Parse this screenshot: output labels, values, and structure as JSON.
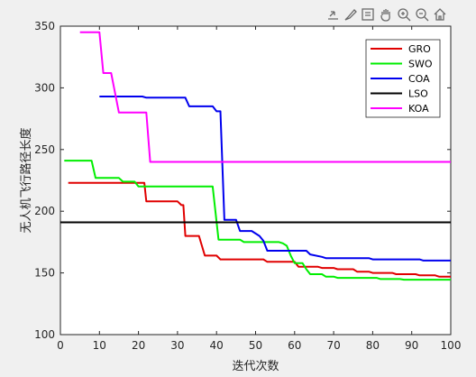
{
  "toolbar": {
    "icons": [
      "export-icon",
      "brush-icon",
      "data-tips-icon",
      "pan-icon",
      "zoom-in-icon",
      "zoom-out-icon",
      "home-icon"
    ]
  },
  "chart_data": {
    "type": "line",
    "title": "",
    "xlabel": "迭代次数",
    "ylabel": "无人机飞行路径长度",
    "xlim": [
      0,
      100
    ],
    "ylim": [
      100,
      350
    ],
    "xticks": [
      "0",
      "10",
      "20",
      "30",
      "40",
      "50",
      "60",
      "70",
      "80",
      "90",
      "100"
    ],
    "yticks": [
      "100",
      "150",
      "200",
      "250",
      "300",
      "350"
    ],
    "grid": false,
    "legend_position": "top-right",
    "series": [
      {
        "name": "GRO",
        "color": "#e00000",
        "points": [
          [
            2,
            223
          ],
          [
            21.5,
            223
          ],
          [
            22,
            208
          ],
          [
            30,
            208
          ],
          [
            31,
            205
          ],
          [
            31.5,
            205
          ],
          [
            32,
            180
          ],
          [
            35.5,
            180
          ],
          [
            37,
            164
          ],
          [
            40,
            164
          ],
          [
            41,
            161
          ],
          [
            52,
            161
          ],
          [
            53,
            159
          ],
          [
            60,
            159
          ],
          [
            61,
            155
          ],
          [
            66,
            155
          ],
          [
            67,
            154
          ],
          [
            70,
            154
          ],
          [
            71,
            153
          ],
          [
            75,
            153
          ],
          [
            76,
            151
          ],
          [
            79,
            151
          ],
          [
            80,
            150
          ],
          [
            85,
            150
          ],
          [
            86,
            149
          ],
          [
            91,
            149
          ],
          [
            92,
            148
          ],
          [
            96,
            148
          ],
          [
            97,
            147
          ],
          [
            100,
            147
          ]
        ]
      },
      {
        "name": "SWO",
        "color": "#00ee00",
        "points": [
          [
            1,
            241
          ],
          [
            8,
            241
          ],
          [
            9,
            227
          ],
          [
            15,
            227
          ],
          [
            16,
            224
          ],
          [
            19,
            224
          ],
          [
            20,
            220
          ],
          [
            39,
            220
          ],
          [
            40.5,
            177
          ],
          [
            46,
            177
          ],
          [
            47,
            175
          ],
          [
            56,
            175
          ],
          [
            57,
            174
          ],
          [
            58,
            172
          ],
          [
            59,
            164
          ],
          [
            60,
            158
          ],
          [
            62,
            158
          ],
          [
            63,
            153
          ],
          [
            64,
            149
          ],
          [
            67,
            149
          ],
          [
            68,
            147
          ],
          [
            70,
            147
          ],
          [
            71,
            146
          ],
          [
            81,
            146
          ],
          [
            82,
            145
          ],
          [
            87,
            145
          ],
          [
            88,
            144.5
          ],
          [
            100,
            144.5
          ]
        ]
      },
      {
        "name": "COA",
        "color": "#0000ee",
        "points": [
          [
            10,
            293
          ],
          [
            21,
            293
          ],
          [
            22,
            292
          ],
          [
            32,
            292
          ],
          [
            33,
            285
          ],
          [
            39,
            285
          ],
          [
            40,
            281
          ],
          [
            41,
            281
          ],
          [
            42,
            193
          ],
          [
            45,
            193
          ],
          [
            46,
            184
          ],
          [
            49,
            184
          ],
          [
            51,
            180
          ],
          [
            52,
            176
          ],
          [
            53,
            168
          ],
          [
            63,
            168
          ],
          [
            64,
            165
          ],
          [
            67,
            163
          ],
          [
            68,
            162
          ],
          [
            79,
            162
          ],
          [
            80,
            161
          ],
          [
            92,
            161
          ],
          [
            93,
            160
          ],
          [
            100,
            160
          ]
        ]
      },
      {
        "name": "LSO",
        "color": "#000000",
        "points": [
          [
            0,
            191
          ],
          [
            100,
            191
          ]
        ]
      },
      {
        "name": "KOA",
        "color": "#ff00ff",
        "points": [
          [
            5,
            345
          ],
          [
            10,
            345
          ],
          [
            11,
            312
          ],
          [
            13,
            312
          ],
          [
            15,
            280
          ],
          [
            22,
            280
          ],
          [
            23,
            240
          ],
          [
            100,
            240
          ]
        ]
      }
    ]
  }
}
